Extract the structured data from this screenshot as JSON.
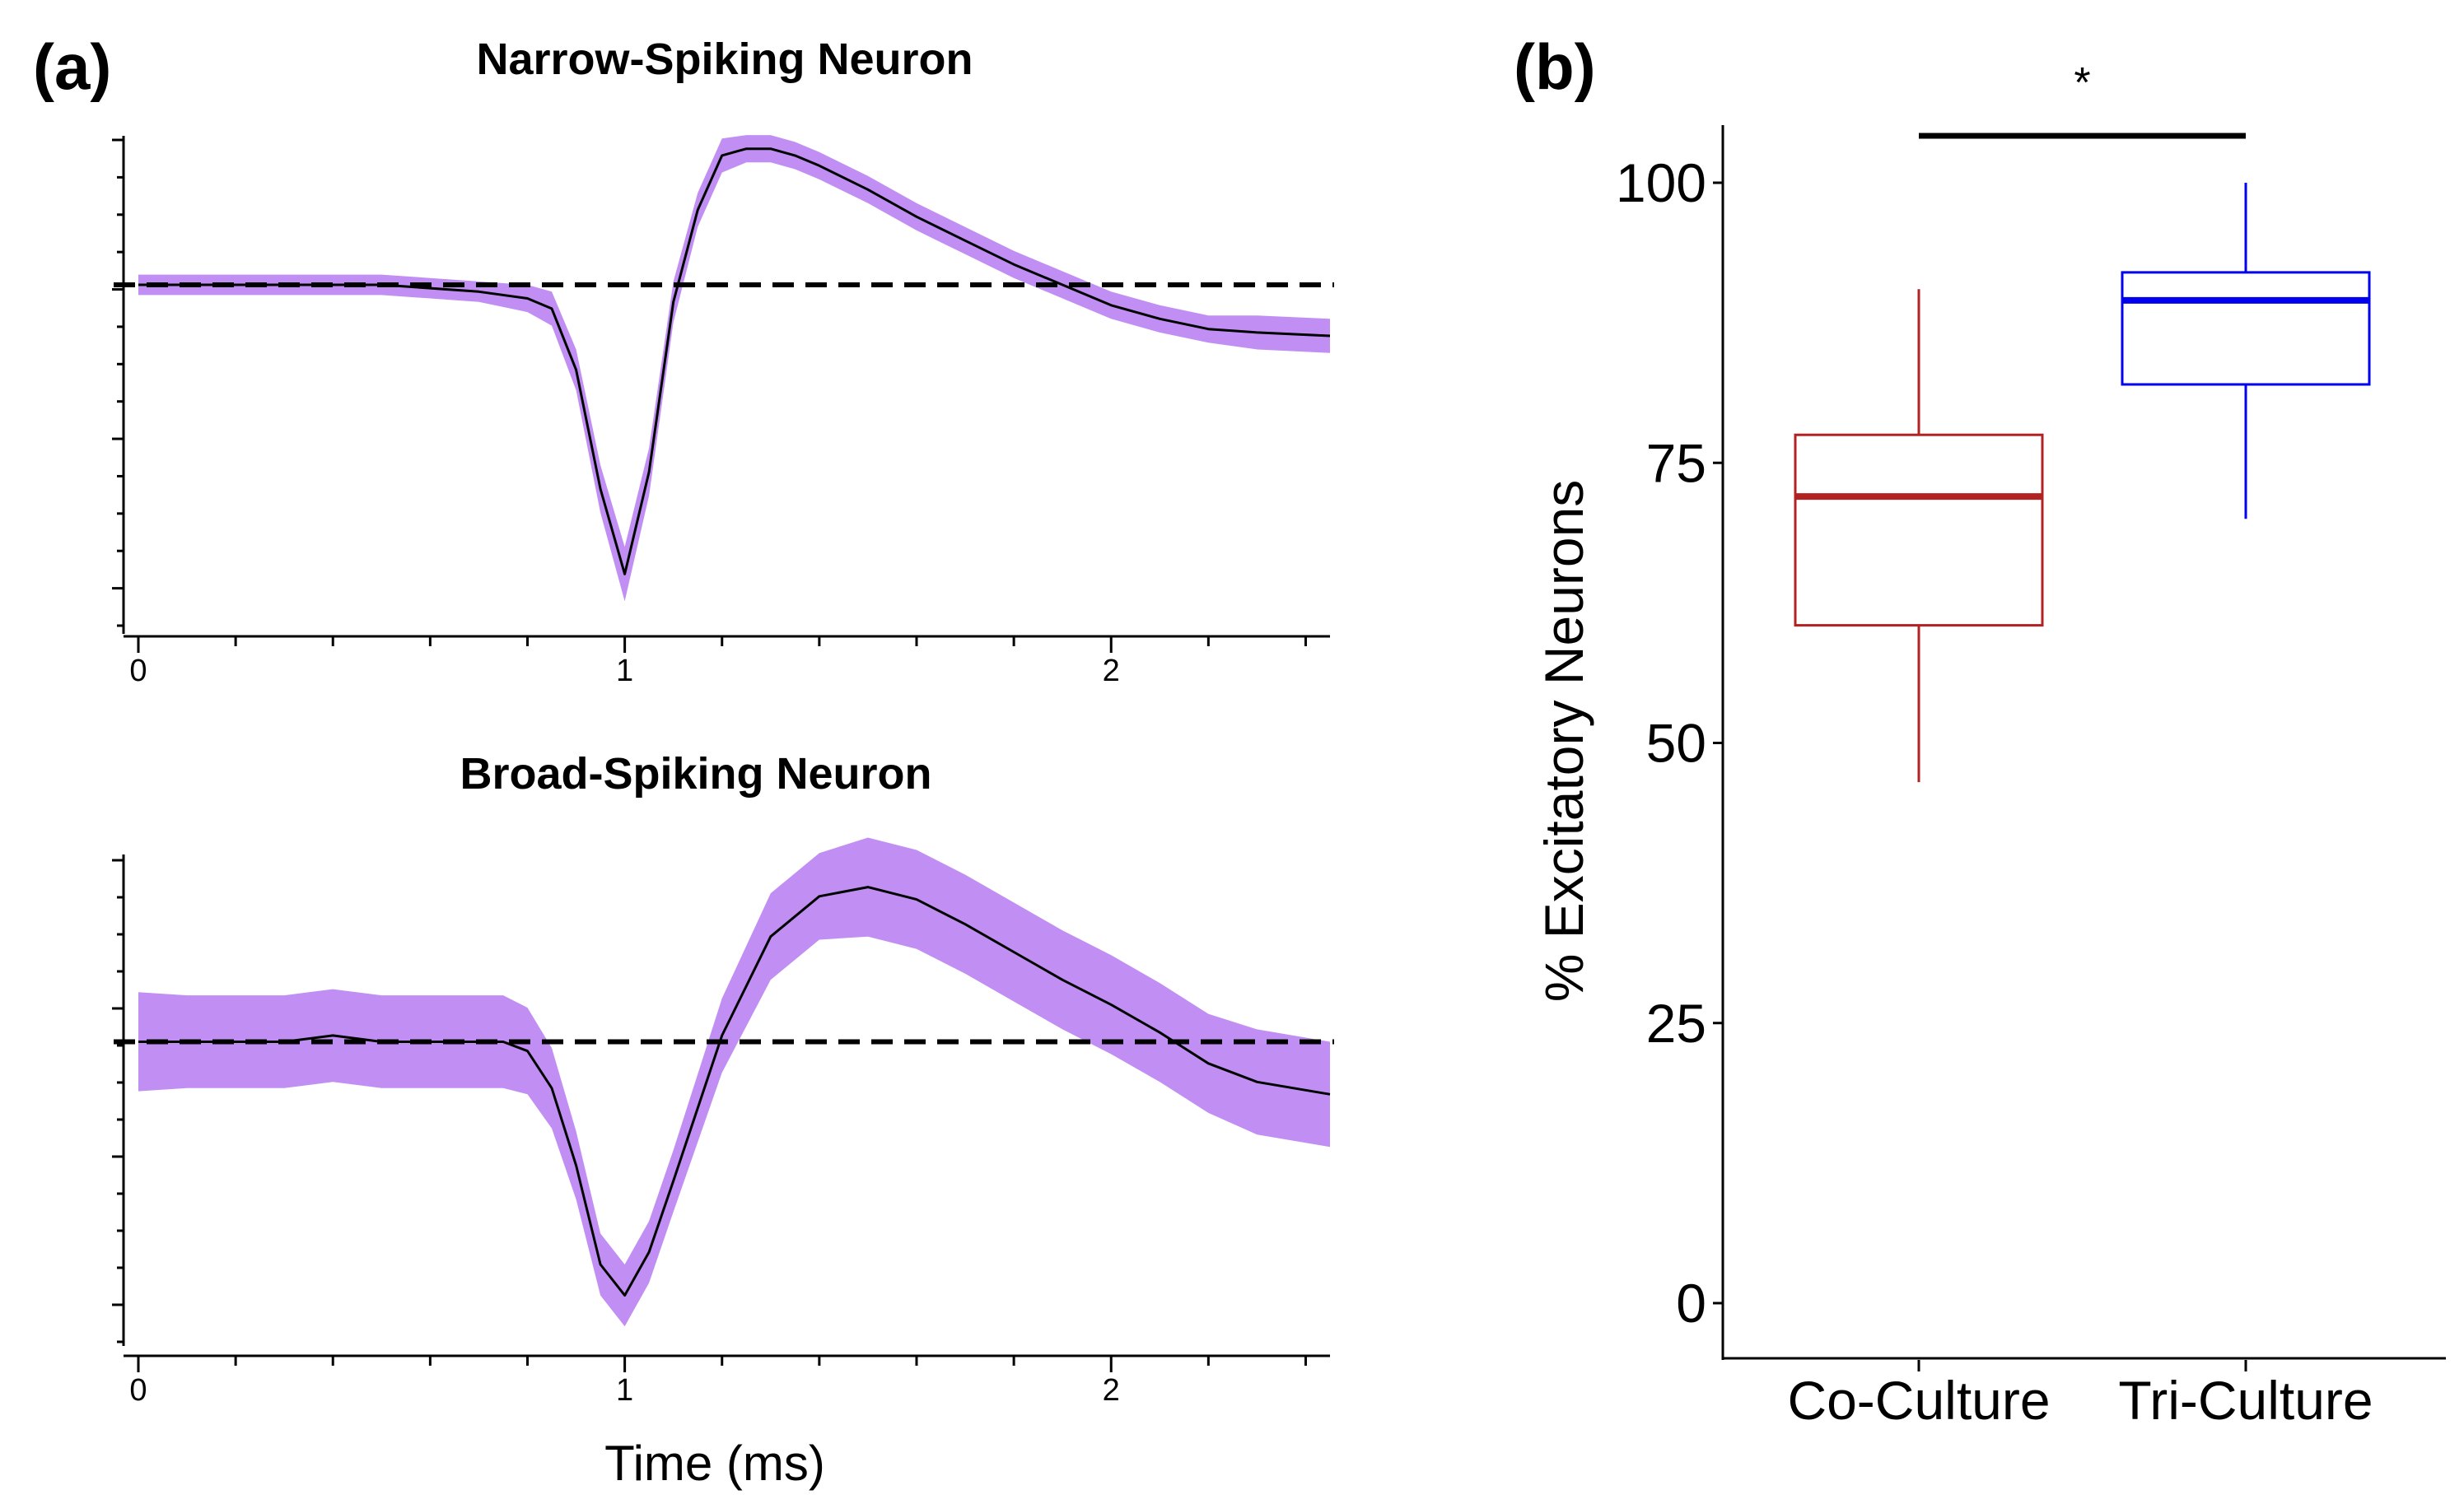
{
  "panel_a_label": "(a)",
  "panel_b_label": "(b)",
  "colors": {
    "band": "#c18ff3",
    "mean_line": "#000000",
    "baseline": "#000000",
    "co_culture": "#b22222",
    "tri_culture": "#0000ee"
  },
  "chart_data": [
    {
      "type": "line",
      "title": "Narrow-Spiking Neuron",
      "xlabel": "",
      "ylabel": "",
      "xlim": [
        0,
        2.45
      ],
      "ylim": [
        -1.05,
        0.45
      ],
      "xticks": [
        0,
        1,
        2
      ],
      "baseline": 0,
      "baseline_style": "dashed",
      "series": [
        {
          "name": "mean waveform",
          "x": [
            0,
            0.1,
            0.2,
            0.3,
            0.4,
            0.5,
            0.6,
            0.7,
            0.8,
            0.85,
            0.9,
            0.95,
            1.0,
            1.05,
            1.1,
            1.15,
            1.2,
            1.25,
            1.3,
            1.35,
            1.4,
            1.5,
            1.6,
            1.7,
            1.8,
            1.9,
            2.0,
            2.1,
            2.2,
            2.3,
            2.45
          ],
          "y": [
            0,
            0,
            0,
            0,
            0,
            0,
            -0.01,
            -0.02,
            -0.04,
            -0.07,
            -0.25,
            -0.6,
            -0.85,
            -0.55,
            -0.05,
            0.22,
            0.38,
            0.4,
            0.4,
            0.38,
            0.35,
            0.28,
            0.2,
            0.13,
            0.06,
            0.0,
            -0.06,
            -0.1,
            -0.13,
            -0.14,
            -0.15
          ]
        },
        {
          "name": "variability band",
          "half_width": [
            0.03,
            0.03,
            0.03,
            0.03,
            0.03,
            0.03,
            0.03,
            0.03,
            0.04,
            0.05,
            0.06,
            0.07,
            0.08,
            0.07,
            0.06,
            0.05,
            0.05,
            0.04,
            0.04,
            0.04,
            0.04,
            0.04,
            0.04,
            0.04,
            0.04,
            0.04,
            0.04,
            0.04,
            0.04,
            0.05,
            0.05
          ]
        }
      ]
    },
    {
      "type": "line",
      "title": "Broad-Spiking Neuron",
      "xlabel": "Time (ms)",
      "ylabel": "",
      "xlim": [
        0,
        2.45
      ],
      "ylim": [
        -1.05,
        0.6
      ],
      "xticks": [
        0,
        1,
        2
      ],
      "baseline": 0,
      "baseline_style": "dashed",
      "series": [
        {
          "name": "mean waveform",
          "x": [
            0,
            0.1,
            0.2,
            0.3,
            0.4,
            0.5,
            0.6,
            0.7,
            0.75,
            0.8,
            0.85,
            0.9,
            0.95,
            1.0,
            1.05,
            1.1,
            1.2,
            1.3,
            1.4,
            1.5,
            1.6,
            1.7,
            1.8,
            1.9,
            2.0,
            2.1,
            2.2,
            2.3,
            2.45
          ],
          "y": [
            0,
            0,
            0,
            0,
            0.02,
            0,
            0,
            0,
            0,
            -0.03,
            -0.15,
            -0.4,
            -0.72,
            -0.82,
            -0.68,
            -0.45,
            0.02,
            0.34,
            0.47,
            0.5,
            0.46,
            0.38,
            0.29,
            0.2,
            0.12,
            0.03,
            -0.07,
            -0.13,
            -0.17
          ]
        },
        {
          "name": "variability band",
          "half_width": [
            0.16,
            0.15,
            0.15,
            0.15,
            0.15,
            0.15,
            0.15,
            0.15,
            0.15,
            0.14,
            0.13,
            0.11,
            0.1,
            0.1,
            0.1,
            0.1,
            0.12,
            0.14,
            0.14,
            0.16,
            0.16,
            0.16,
            0.16,
            0.16,
            0.16,
            0.16,
            0.16,
            0.17,
            0.17
          ]
        }
      ]
    },
    {
      "type": "box",
      "title": "",
      "xlabel": "",
      "ylabel": "% Excitatory Neurons",
      "ylim": [
        0,
        105
      ],
      "yticks": [
        0,
        25,
        50,
        75,
        100
      ],
      "categories": [
        "Co-Culture",
        "Tri-Culture"
      ],
      "boxes": [
        {
          "name": "Co-Culture",
          "min": 46.5,
          "q1": 60.5,
          "median": 72,
          "q3": 77.5,
          "max": 90.5
        },
        {
          "name": "Tri-Culture",
          "min": 70,
          "q1": 82,
          "median": 89.5,
          "q3": 92,
          "max": 100
        }
      ],
      "significance": {
        "label": "*",
        "between": [
          "Co-Culture",
          "Tri-Culture"
        ]
      }
    }
  ]
}
